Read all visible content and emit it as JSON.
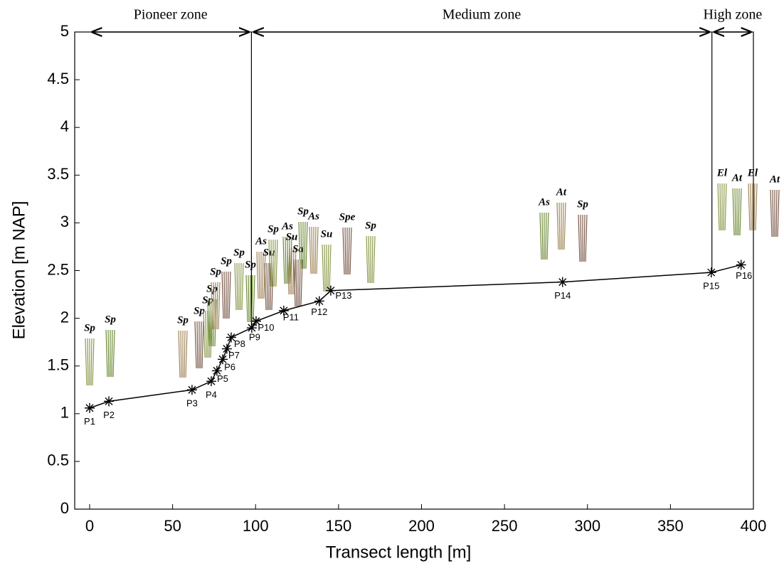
{
  "chart_data": {
    "type": "line",
    "x_label": "Transect length [m]",
    "y_label": "Elevation [m NAP]",
    "xlim": [
      -9,
      400
    ],
    "ylim": [
      0,
      5
    ],
    "xticks": [
      0,
      50,
      100,
      150,
      200,
      250,
      300,
      350,
      400
    ],
    "yticks": [
      0,
      0.5,
      1,
      1.5,
      2,
      2.5,
      3,
      3.5,
      4,
      4.5,
      5
    ],
    "color": "#000000",
    "point_labels": [
      "P1",
      "P2",
      "P3",
      "P4",
      "P5",
      "P6",
      "P7",
      "P8",
      "P9",
      "P10",
      "P11",
      "P12",
      "P13",
      "P14",
      "P15",
      "P16"
    ],
    "x": [
      0,
      11.6,
      61.7,
      73.3,
      76.7,
      80.2,
      82.7,
      85.3,
      97.7,
      100.3,
      117,
      138.4,
      145.3,
      285,
      374.6,
      392.6
    ],
    "y": [
      1.06,
      1.13,
      1.25,
      1.34,
      1.45,
      1.57,
      1.68,
      1.8,
      1.9,
      1.97,
      2.08,
      2.18,
      2.29,
      2.38,
      2.48,
      2.56
    ],
    "zones": [
      {
        "label": "Pioneer zone",
        "start": 0,
        "end": 97.5
      },
      {
        "label": "Medium zone",
        "start": 97.5,
        "end": 375
      },
      {
        "label": "High zone",
        "start": 375,
        "end": 400
      }
    ],
    "species_labels": [
      "Sp",
      "Sp",
      "Sp",
      "Sp",
      "Sp",
      "Sp",
      "Sp",
      "Sp",
      "Sp",
      "Sp",
      "As",
      "Su",
      "Sp",
      "As",
      "Su",
      "Sa",
      "Su",
      "Sp",
      "As",
      "Spe",
      "Sp",
      "As",
      "At",
      "Sp",
      "El",
      "At",
      "El",
      "At"
    ]
  }
}
